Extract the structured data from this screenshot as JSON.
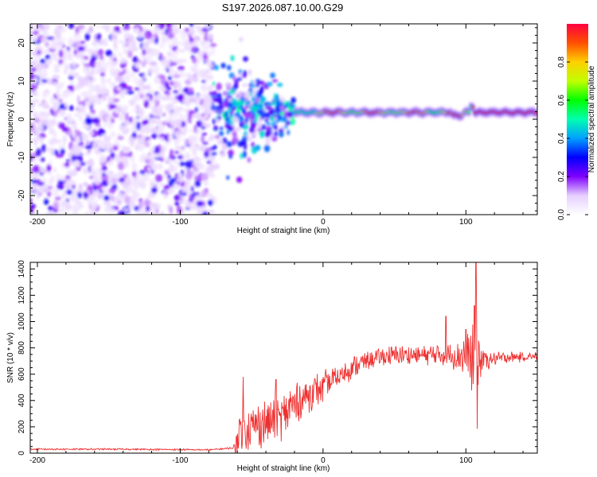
{
  "figure": {
    "title": "S197.2026.087.10.00.G29"
  },
  "chart_data": [
    {
      "type": "heatmap",
      "name": "spectrogram",
      "title": "",
      "xlabel": "Height of straight line (km)",
      "ylabel": "Frequency (Hz)",
      "xlim": [
        -205,
        150
      ],
      "ylim": [
        -25,
        25
      ],
      "x_ticks": [
        -200,
        -100,
        0,
        100
      ],
      "x_tick_labels": [
        "-200",
        "-100",
        "0",
        "100"
      ],
      "y_ticks": [
        -20,
        -10,
        0,
        10,
        20
      ],
      "y_tick_labels": [
        "-20",
        "-10",
        "0",
        "10",
        "20"
      ],
      "regions": [
        {
          "name": "noise",
          "x_range": [
            -205,
            -77
          ],
          "freq_range": [
            -25,
            25
          ],
          "amplitude_range": [
            0.05,
            0.3
          ]
        },
        {
          "name": "transition",
          "x_range": [
            -77,
            -20
          ],
          "freq_center": 2,
          "freq_spread": [
            -10,
            10
          ],
          "amplitude_range": [
            0.1,
            0.45
          ]
        },
        {
          "name": "tone",
          "x_range": [
            -20,
            150
          ],
          "freq_center": 1.8,
          "freq_spread": [
            -1.5,
            1.5
          ],
          "amplitude_range": [
            0.4,
            1.0
          ]
        }
      ],
      "colorbar": {
        "label": "Normalized spectral amplitude",
        "range": [
          0,
          1
        ],
        "ticks": [
          0.0,
          0.2,
          0.4,
          0.6,
          0.8
        ],
        "tick_labels": [
          "0.0",
          "0.2",
          "0.4",
          "0.6",
          "0.8"
        ],
        "colors": [
          "#ffffff",
          "#e6d0ff",
          "#8000ff",
          "#0000ff",
          "#00a0ff",
          "#00ffb0",
          "#00ff00",
          "#c0ff00",
          "#ffd000",
          "#ff5000",
          "#ff0040"
        ]
      }
    },
    {
      "type": "line",
      "name": "snr",
      "title": "",
      "xlabel": "Height of straight line (km)",
      "ylabel": "SNR (10 * v/v)",
      "xlim": [
        -205,
        150
      ],
      "ylim": [
        0,
        1450
      ],
      "x_ticks": [
        -200,
        -100,
        0,
        100
      ],
      "x_tick_labels": [
        "-200",
        "-100",
        "0",
        "100"
      ],
      "y_ticks": [
        0,
        200,
        400,
        600,
        800,
        1000,
        1200,
        1400
      ],
      "y_tick_labels": [
        "0",
        "200",
        "400",
        "600",
        "800",
        "1000",
        "1200",
        "1400"
      ],
      "line_color": "#ee3030",
      "series": [
        {
          "name": "SNR",
          "envelope": [
            [
              -205,
              30
            ],
            [
              -140,
              30
            ],
            [
              -80,
              25
            ],
            [
              -62,
              40
            ],
            [
              -58,
              180
            ],
            [
              -50,
              200
            ],
            [
              -40,
              230
            ],
            [
              -30,
              260
            ],
            [
              -20,
              370
            ],
            [
              -10,
              450
            ],
            [
              0,
              500
            ],
            [
              10,
              580
            ],
            [
              20,
              650
            ],
            [
              30,
              700
            ],
            [
              40,
              730
            ],
            [
              50,
              745
            ],
            [
              60,
              745
            ],
            [
              70,
              745
            ],
            [
              80,
              750
            ],
            [
              90,
              745
            ],
            [
              100,
              740
            ],
            [
              106,
              700
            ],
            [
              108,
              700
            ],
            [
              115,
              710
            ],
            [
              130,
              730
            ],
            [
              150,
              735
            ]
          ],
          "noise_amplitude": [
            [
              -205,
              8
            ],
            [
              -63,
              8
            ],
            [
              -60,
              140
            ],
            [
              -30,
              150
            ],
            [
              0,
              100
            ],
            [
              30,
              60
            ],
            [
              70,
              60
            ],
            [
              90,
              80
            ],
            [
              100,
              130
            ],
            [
              106,
              300
            ],
            [
              112,
              80
            ],
            [
              120,
              40
            ],
            [
              150,
              30
            ]
          ],
          "spikes": [
            [
              -56,
              580
            ],
            [
              -33,
              560
            ],
            [
              -23,
              470
            ],
            [
              86,
              1040
            ],
            [
              107,
              1450
            ],
            [
              106,
              1120
            ],
            [
              108,
              185
            ],
            [
              100,
              940
            ]
          ]
        }
      ]
    }
  ]
}
